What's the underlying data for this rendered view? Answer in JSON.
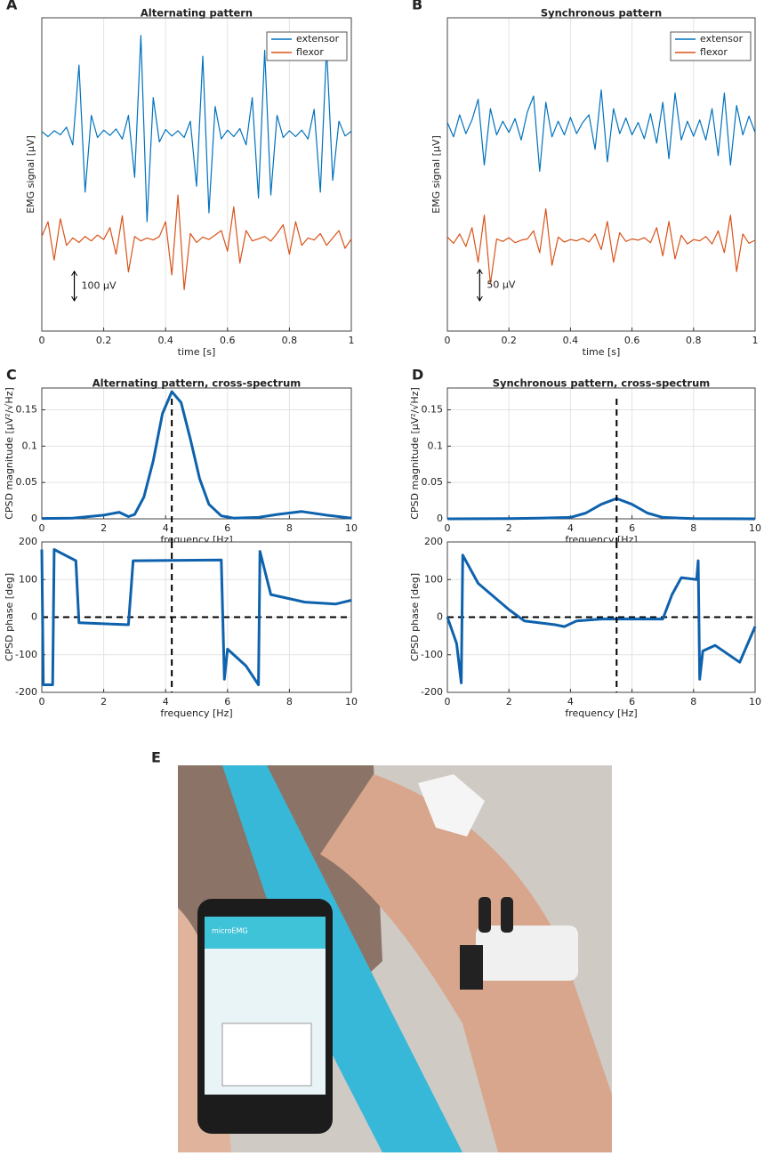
{
  "chart_data": [
    {
      "type": "line",
      "panel_label": "A",
      "title": "Alternating pattern",
      "xlabel": "time [s]",
      "ylabel": "EMG signal [μV]",
      "xlim": [
        0,
        1
      ],
      "xticks": [
        0,
        0.2,
        0.4,
        0.6,
        0.8,
        1
      ],
      "ylim": [
        -670,
        390
      ],
      "grid": true,
      "legend": "upper right",
      "x": [
        0,
        0.02,
        0.04,
        0.06,
        0.08,
        0.1,
        0.12,
        0.14,
        0.16,
        0.18,
        0.2,
        0.22,
        0.24,
        0.26,
        0.28,
        0.3,
        0.32,
        0.34,
        0.36,
        0.38,
        0.4,
        0.42,
        0.44,
        0.46,
        0.48,
        0.5,
        0.52,
        0.54,
        0.56,
        0.58,
        0.6,
        0.62,
        0.64,
        0.66,
        0.68,
        0.7,
        0.72,
        0.74,
        0.76,
        0.78,
        0.8,
        0.82,
        0.84,
        0.86,
        0.88,
        0.9,
        0.92,
        0.94,
        0.96,
        0.98,
        1
      ],
      "series": [
        {
          "name": "extensor",
          "color": "#0072bd",
          "values": [
            5,
            -12,
            8,
            -6,
            20,
            -40,
            230,
            -200,
            60,
            -15,
            10,
            -8,
            14,
            -20,
            60,
            -150,
            330,
            -300,
            120,
            -30,
            12,
            -10,
            8,
            -15,
            40,
            -180,
            260,
            -270,
            90,
            -20,
            10,
            -12,
            15,
            -40,
            120,
            -220,
            280,
            -210,
            60,
            -15,
            8,
            -12,
            10,
            -20,
            80,
            -200,
            290,
            -160,
            40,
            -10,
            6
          ]
        },
        {
          "name": "flexor",
          "color": "#d95319",
          "values": [
            -350,
            -300,
            -430,
            -290,
            -380,
            -355,
            -370,
            -350,
            -365,
            -345,
            -360,
            -320,
            -410,
            -280,
            -470,
            -350,
            -365,
            -355,
            -362,
            -350,
            -300,
            -480,
            -210,
            -530,
            -340,
            -370,
            -352,
            -360,
            -345,
            -330,
            -400,
            -250,
            -440,
            -330,
            -365,
            -358,
            -350,
            -366,
            -340,
            -310,
            -410,
            -300,
            -380,
            -355,
            -362,
            -340,
            -380,
            -355,
            -330,
            -390,
            -358
          ]
        }
      ],
      "scale_bar": {
        "value": 100,
        "label": "100 μV"
      }
    },
    {
      "type": "line",
      "panel_label": "B",
      "title": "Synchronous pattern",
      "xlabel": "time [s]",
      "ylabel": "EMG signal [μV]",
      "xlim": [
        0,
        1
      ],
      "xticks": [
        0,
        0.2,
        0.4,
        0.6,
        0.8,
        1
      ],
      "ylim": [
        -325,
        175
      ],
      "grid": true,
      "legend": "upper right",
      "x": [
        0,
        0.02,
        0.04,
        0.06,
        0.08,
        0.1,
        0.12,
        0.14,
        0.16,
        0.18,
        0.2,
        0.22,
        0.24,
        0.26,
        0.28,
        0.3,
        0.32,
        0.34,
        0.36,
        0.38,
        0.4,
        0.42,
        0.44,
        0.46,
        0.48,
        0.5,
        0.52,
        0.54,
        0.56,
        0.58,
        0.6,
        0.62,
        0.64,
        0.66,
        0.68,
        0.7,
        0.72,
        0.74,
        0.76,
        0.78,
        0.8,
        0.82,
        0.84,
        0.86,
        0.88,
        0.9,
        0.92,
        0.94,
        0.96,
        0.98,
        1
      ],
      "series": [
        {
          "name": "extensor",
          "color": "#0072bd",
          "values": [
            8,
            -15,
            20,
            -10,
            12,
            45,
            -60,
            30,
            -12,
            10,
            -8,
            14,
            -20,
            25,
            50,
            -70,
            40,
            -15,
            10,
            -12,
            16,
            -10,
            8,
            20,
            -35,
            60,
            -55,
            30,
            -10,
            15,
            -12,
            8,
            -18,
            22,
            -25,
            40,
            -50,
            55,
            -20,
            10,
            -14,
            12,
            -20,
            30,
            -45,
            55,
            -60,
            35,
            -12,
            18,
            -8
          ]
        },
        {
          "name": "flexor",
          "color": "#d95319",
          "values": [
            -175,
            -185,
            -170,
            -190,
            -160,
            -215,
            -140,
            -250,
            -178,
            -182,
            -176,
            -184,
            -180,
            -178,
            -165,
            -200,
            -130,
            -220,
            -175,
            -183,
            -179,
            -181,
            -177,
            -183,
            -170,
            -195,
            -150,
            -215,
            -168,
            -182,
            -178,
            -180,
            -176,
            -184,
            -160,
            -205,
            -150,
            -210,
            -172,
            -186,
            -179,
            -181,
            -174,
            -186,
            -165,
            -200,
            -140,
            -230,
            -170,
            -185,
            -180
          ]
        }
      ],
      "scale_bar": {
        "value": 50,
        "label": "50 μV"
      }
    },
    {
      "type": "line",
      "panel_label": "C",
      "title": "Alternating pattern, cross-spectrum",
      "xlabel": "frequency [Hz]",
      "ylabel": "CPSD magnitude [μV²/√Hz]",
      "xlim": [
        0,
        10
      ],
      "xticks": [
        0,
        2,
        4,
        6,
        8,
        10
      ],
      "ylim": [
        0,
        0.18
      ],
      "yticks": [
        0,
        0.05,
        0.1,
        0.15
      ],
      "grid": true,
      "marker_x": 4.2,
      "x": [
        0,
        1,
        2,
        2.5,
        2.8,
        3,
        3.3,
        3.6,
        3.9,
        4.2,
        4.5,
        4.8,
        5.1,
        5.4,
        5.8,
        6.2,
        7,
        7.6,
        8.4,
        9.2,
        10
      ],
      "series": [
        {
          "color": "#0e62ad",
          "values": [
            0.0005,
            0.001,
            0.005,
            0.009,
            0.003,
            0.006,
            0.03,
            0.08,
            0.145,
            0.175,
            0.16,
            0.11,
            0.055,
            0.02,
            0.004,
            0.001,
            0.002,
            0.006,
            0.01,
            0.005,
            0.001
          ]
        }
      ]
    },
    {
      "type": "line",
      "xlabel": "frequency [Hz]",
      "ylabel": "CPSD phase [deg]",
      "xlim": [
        0,
        10
      ],
      "xticks": [
        0,
        2,
        4,
        6,
        8,
        10
      ],
      "ylim": [
        -200,
        200
      ],
      "yticks": [
        -200,
        -100,
        0,
        100,
        200
      ],
      "grid": true,
      "marker_x": 4.2,
      "hline": 0,
      "x": [
        0,
        0.05,
        0.35,
        0.4,
        1.1,
        1.2,
        2.8,
        2.95,
        5.8,
        5.9,
        6.0,
        6.6,
        7.0,
        7.05,
        7.4,
        8.5,
        9.5,
        10
      ],
      "series": [
        {
          "color": "#0e62ad",
          "values": [
            180,
            -180,
            -180,
            180,
            150,
            -15,
            -20,
            150,
            152,
            -165,
            -85,
            -130,
            -180,
            175,
            60,
            40,
            35,
            45
          ]
        }
      ]
    },
    {
      "type": "line",
      "panel_label": "D",
      "title": "Synchronous pattern, cross-spectrum",
      "xlabel": "frequency [Hz]",
      "ylabel": "CPSD magnitude [μV²/√Hz]",
      "xlim": [
        0,
        10
      ],
      "xticks": [
        0,
        2,
        4,
        6,
        8,
        10
      ],
      "ylim": [
        0,
        0.18
      ],
      "yticks": [
        0,
        0.05,
        0.1,
        0.15
      ],
      "grid": true,
      "marker_x": 5.5,
      "x": [
        0,
        2,
        3,
        4,
        4.5,
        5,
        5.5,
        6,
        6.5,
        7,
        8,
        10
      ],
      "series": [
        {
          "color": "#0e62ad",
          "values": [
            0,
            0.0003,
            0.0008,
            0.002,
            0.008,
            0.02,
            0.028,
            0.02,
            0.008,
            0.002,
            0.0003,
            0
          ]
        }
      ]
    },
    {
      "type": "line",
      "xlabel": "frequency [Hz]",
      "ylabel": "CPSD phase [deg]",
      "xlim": [
        0,
        10
      ],
      "xticks": [
        0,
        2,
        4,
        6,
        8,
        10
      ],
      "ylim": [
        -200,
        200
      ],
      "yticks": [
        -200,
        -100,
        0,
        100,
        200
      ],
      "grid": true,
      "marker_x": 5.5,
      "hline": 0,
      "x": [
        0,
        0.3,
        0.45,
        0.5,
        1,
        2,
        2.5,
        3.5,
        3.8,
        4.2,
        5,
        6,
        7,
        7.3,
        7.6,
        8.1,
        8.15,
        8.2,
        8.3,
        8.7,
        9.5,
        10
      ],
      "series": [
        {
          "color": "#0e62ad",
          "values": [
            0,
            -70,
            -175,
            165,
            90,
            20,
            -10,
            -20,
            -25,
            -10,
            -5,
            -5,
            -5,
            60,
            105,
            100,
            150,
            -165,
            -90,
            -75,
            -120,
            -25
          ]
        }
      ]
    }
  ],
  "panel_E": {
    "label": "E",
    "screen_title": "microEMG"
  }
}
